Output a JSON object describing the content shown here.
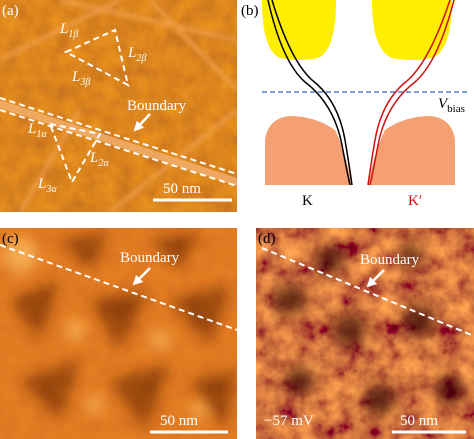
{
  "panels": [
    {
      "label": "(a)",
      "annotations": [
        {
          "main": "L",
          "sub": "1β"
        },
        {
          "main": "L",
          "sub": "2β"
        },
        {
          "main": "L",
          "sub": "3β"
        },
        {
          "main": "L",
          "sub": "1α"
        },
        {
          "main": "L",
          "sub": "2α"
        },
        {
          "main": "L",
          "sub": "3α"
        }
      ],
      "boundary": "Boundary",
      "scale_bar": "50 nm"
    },
    {
      "label": "(b)",
      "bias": {
        "main": "V",
        "sub": "bias"
      },
      "valleys": [
        "K",
        "K′"
      ]
    },
    {
      "label": "(c)",
      "boundary": "Boundary",
      "scale_bar": "50 nm"
    },
    {
      "label": "(d)",
      "boundary": "Boundary",
      "bias_value": "−57 mV",
      "scale_bar": "50 nm"
    }
  ]
}
